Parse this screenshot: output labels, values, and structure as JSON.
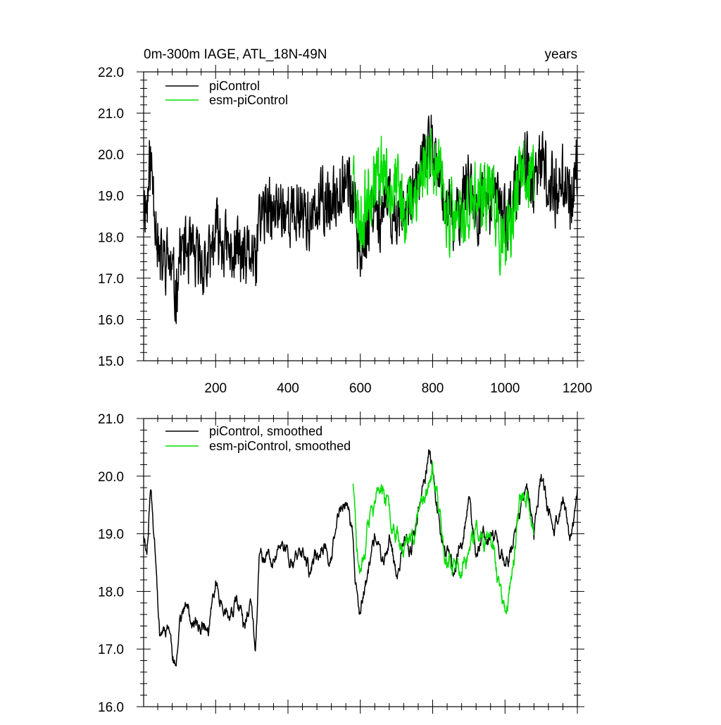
{
  "chart_data": [
    {
      "type": "line",
      "title": "0m-300m IAGE, ATL_18N-49N",
      "units": "years",
      "xlim": [
        1,
        1200
      ],
      "ylim": [
        15.0,
        22.0
      ],
      "x_ticks": [
        200,
        400,
        600,
        800,
        1000,
        1200
      ],
      "y_ticks": [
        15.0,
        16.0,
        17.0,
        18.0,
        19.0,
        20.0,
        21.0,
        22.0
      ],
      "y_tick_labels": [
        "15.0",
        "16.0",
        "17.0",
        "18.0",
        "19.0",
        "20.0",
        "21.0",
        "22.0"
      ],
      "x_tick_labels": [
        "200",
        "400",
        "600",
        "800",
        "1000",
        "1200"
      ],
      "legend": "top-left",
      "series": [
        {
          "name": "piControl",
          "color": "#000000",
          "x_start": 1,
          "x_end": 1200,
          "anchors_x": [
            1,
            10,
            20,
            35,
            45,
            60,
            70,
            80,
            90,
            100,
            120,
            140,
            160,
            180,
            200,
            220,
            240,
            260,
            280,
            300,
            310,
            320,
            340,
            360,
            380,
            400,
            420,
            440,
            460,
            480,
            500,
            520,
            540,
            560,
            580,
            590,
            600,
            620,
            640,
            660,
            680,
            700,
            720,
            740,
            760,
            780,
            790,
            800,
            820,
            840,
            860,
            880,
            900,
            920,
            940,
            960,
            980,
            1000,
            1020,
            1040,
            1060,
            1080,
            1100,
            1120,
            1140,
            1160,
            1180,
            1200
          ],
          "anchors_y": [
            19.0,
            18.7,
            19.9,
            18.5,
            17.3,
            17.4,
            17.5,
            17.0,
            16.6,
            17.6,
            17.7,
            17.4,
            17.4,
            17.3,
            18.1,
            17.9,
            17.5,
            17.8,
            17.3,
            17.7,
            17.0,
            18.5,
            18.6,
            18.5,
            18.8,
            18.6,
            18.5,
            18.8,
            18.3,
            18.6,
            18.9,
            18.6,
            19.3,
            19.6,
            18.9,
            18.0,
            17.6,
            18.3,
            19.0,
            18.4,
            18.9,
            18.3,
            18.9,
            18.7,
            19.4,
            19.9,
            20.4,
            20.2,
            19.1,
            18.7,
            18.3,
            18.9,
            19.6,
            18.5,
            19.0,
            18.8,
            18.9,
            18.4,
            18.8,
            19.3,
            20.0,
            19.0,
            19.9,
            19.3,
            19.1,
            19.6,
            18.8,
            19.6
          ],
          "noise_amplitude": 0.95,
          "smoothed_noise_amplitude": 0.2,
          "seed": 11
        },
        {
          "name": "esm-piControl",
          "color": "#00dd00",
          "x_start": 580,
          "x_end": 1080,
          "anchors_x": [
            580,
            590,
            600,
            620,
            640,
            660,
            680,
            700,
            720,
            740,
            760,
            780,
            800,
            820,
            840,
            860,
            880,
            900,
            920,
            940,
            960,
            980,
            990,
            1000,
            1020,
            1040,
            1060,
            1080
          ],
          "anchors_y": [
            19.9,
            18.7,
            18.3,
            19.0,
            19.4,
            19.8,
            19.3,
            19.2,
            18.7,
            18.9,
            19.3,
            19.8,
            20.1,
            19.3,
            18.6,
            18.4,
            18.3,
            18.7,
            19.0,
            18.9,
            19.2,
            18.3,
            17.8,
            17.6,
            18.3,
            19.5,
            19.6,
            19.2
          ],
          "noise_amplitude": 1.0,
          "smoothed_noise_amplitude": 0.25,
          "seed": 23
        }
      ],
      "legend_entries": [
        "piControl",
        "esm-piControl"
      ]
    },
    {
      "type": "line",
      "title": "",
      "xlim": [
        1,
        1200
      ],
      "ylim": [
        16.0,
        21.0
      ],
      "x_ticks": [
        200,
        400,
        600,
        800,
        1000,
        1200
      ],
      "y_ticks": [
        16.0,
        17.0,
        18.0,
        19.0,
        20.0,
        21.0
      ],
      "y_tick_labels": [
        "16.0",
        "17.0",
        "18.0",
        "19.0",
        "20.0",
        "21.0"
      ],
      "legend": "top-left",
      "smoothed": true,
      "legend_entries": [
        "piControl, smoothed",
        "esm-piControl, smoothed"
      ]
    }
  ]
}
